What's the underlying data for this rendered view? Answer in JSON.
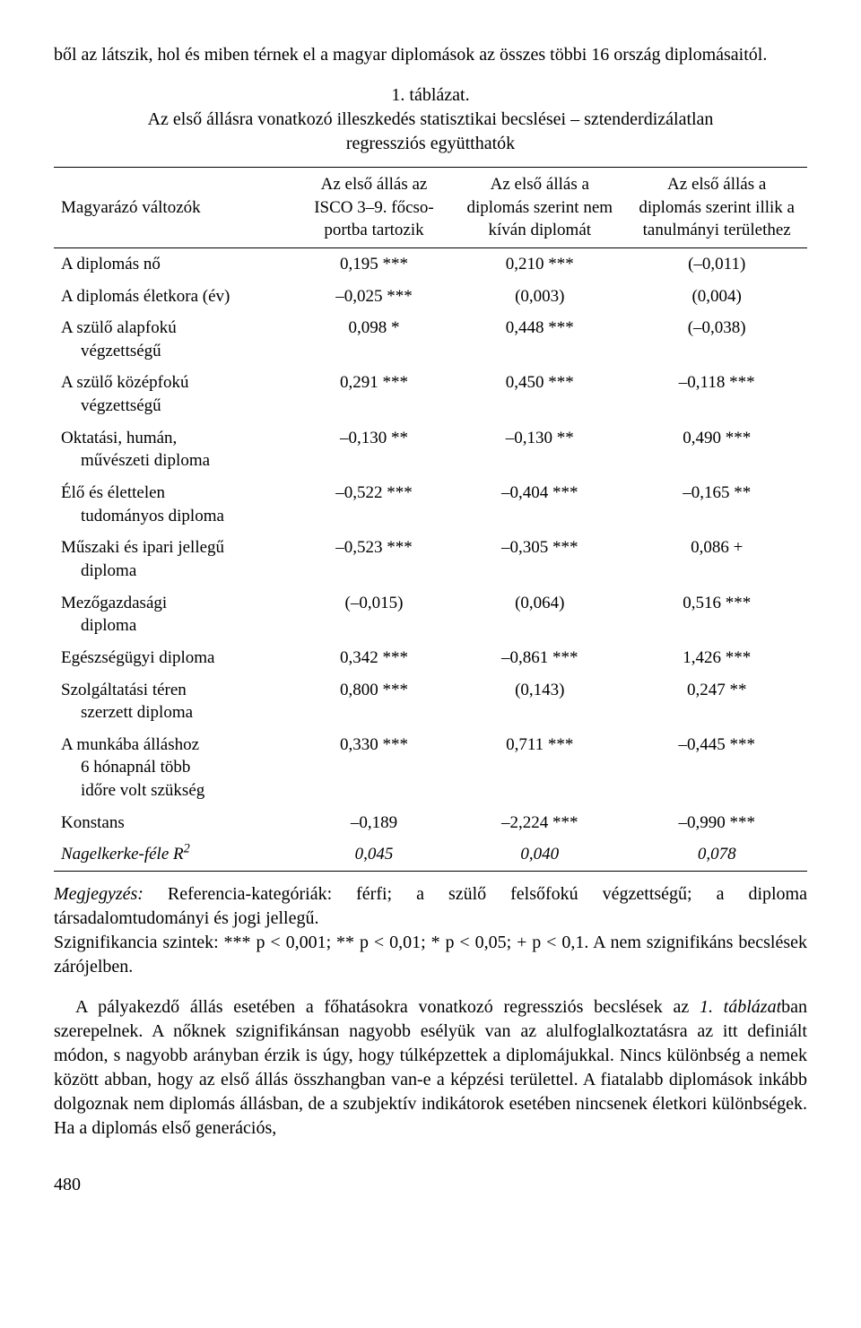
{
  "intro": "ből az látszik, hol és miben térnek el a magyar diplomások az összes többi 16 ország diplomásaitól.",
  "table": {
    "caption": "1. táblázat.",
    "title_line1": "Az első állásra vonatkozó illeszkedés statisztikai becslései – sztenderdizálatlan",
    "title_line2": "regressziós együtthatók",
    "columns": {
      "c0": "Magyarázó változók",
      "c1_l1": "Az első állás az",
      "c1_l2": "ISCO 3–9. főcso-",
      "c1_l3": "portba tartozik",
      "c2_l1": "Az első állás a",
      "c2_l2": "diplomás szerint nem",
      "c2_l3": "kíván diplomát",
      "c3_l1": "Az első állás a",
      "c3_l2": "diplomás szerint illik a",
      "c3_l3": "tanulmányi területhez"
    },
    "rows": [
      {
        "label": "A diplomás nő",
        "v1": "0,195 ***",
        "v2": "0,210 ***",
        "v3": "(–0,011)"
      },
      {
        "label": "A diplomás életkora (év)",
        "v1": "–0,025 ***",
        "v2": "(0,003)",
        "v3": "(0,004)"
      },
      {
        "label_l1": "A szülő alapfokú",
        "label_l2": "végzettségű",
        "v1": "0,098 *",
        "v2": "0,448 ***",
        "v3": "(–0,038)"
      },
      {
        "label_l1": "A szülő középfokú",
        "label_l2": "végzettségű",
        "v1": "0,291 ***",
        "v2": "0,450 ***",
        "v3": "–0,118 ***"
      },
      {
        "label_l1": "Oktatási, humán,",
        "label_l2": "művészeti diploma",
        "v1": "–0,130 **",
        "v2": "–0,130 **",
        "v3": "0,490 ***"
      },
      {
        "label_l1": "Élő és élettelen",
        "label_l2": "tudományos diploma",
        "v1": "–0,522 ***",
        "v2": "–0,404 ***",
        "v3": "–0,165 **"
      },
      {
        "label_l1": "Műszaki és ipari jellegű",
        "label_l2": "diploma",
        "v1": "–0,523 ***",
        "v2": "–0,305 ***",
        "v3": "0,086 +"
      },
      {
        "label_l1": "Mezőgazdasági",
        "label_l2": "diploma",
        "v1": "(–0,015)",
        "v2": "(0,064)",
        "v3": "0,516 ***"
      },
      {
        "label": "Egészségügyi diploma",
        "v1": "0,342 ***",
        "v2": "–0,861 ***",
        "v3": "1,426 ***"
      },
      {
        "label_l1": "Szolgáltatási téren",
        "label_l2": "szerzett diploma",
        "v1": "0,800 ***",
        "v2": "(0,143)",
        "v3": "0,247 **"
      },
      {
        "label_l1": "A munkába álláshoz",
        "label_l2": "6 hónapnál több",
        "label_l3": "időre volt szükség",
        "v1": "0,330 ***",
        "v2": "0,711 ***",
        "v3": "–0,445 ***"
      },
      {
        "label": "Konstans",
        "v1": "–0,189",
        "v2": "–2,224 ***",
        "v3": "–0,990 ***"
      },
      {
        "label_html": "Nagelkerke-féle R<sup>2</sup>",
        "italic": true,
        "last": true,
        "v1": "0,045",
        "v2": "0,040",
        "v3": "0,078",
        "val_italic": true
      }
    ]
  },
  "note": {
    "l1_prefix": "Megjegyzés:",
    "l1_rest": " Referencia-kategóriák: férfi; a szülő felsőfokú végzettségű; a diploma társadalomtudományi és jogi jellegű.",
    "l2": "Szignifikancia szintek: *** p < 0,001; ** p < 0,01; * p < 0,05; + p < 0,1. A nem szignifikáns becslések zárójelben."
  },
  "body": "A pályakezdő állás esetében a főhatásokra vonatkozó regressziós becslések az <i>1. táblázat</i>ban szerepelnek. A nőknek szignifikánsan nagyobb esélyük van az alulfoglalkoztatásra az itt definiált módon, s nagyobb arányban érzik is úgy, hogy túlképzettek a diplomájukkal. Nincs különbség a nemek között abban, hogy az első állás összhangban van-e a képzési területtel. A fiatalabb diplomások inkább dolgoznak nem diplomás állásban, de a szubjektív indikátorok esetében nincsenek életkori különbségek. Ha a diplomás első generációs,",
  "pagenum": "480"
}
